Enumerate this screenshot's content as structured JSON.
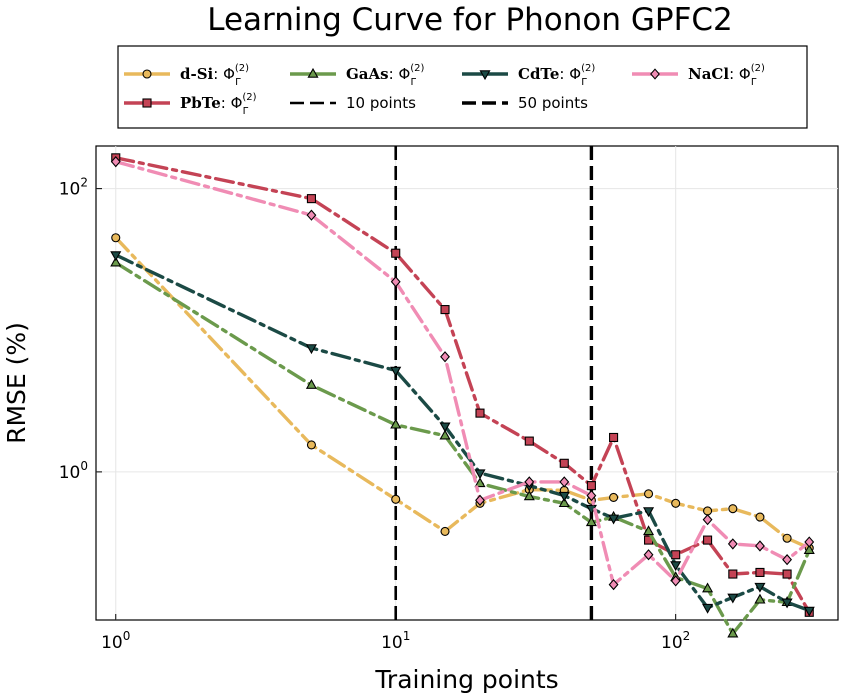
{
  "chart_data": {
    "type": "line",
    "title": "Learning Curve for Phonon GPFC2",
    "xlabel": "Training points",
    "ylabel": "RMSE (%)",
    "xscale": "log",
    "yscale": "log",
    "xlim": [
      0.85,
      380
    ],
    "ylim": [
      0.09,
      200
    ],
    "xticks": [
      {
        "value": 1,
        "base": "10",
        "exp": "0"
      },
      {
        "value": 10,
        "base": "10",
        "exp": "1"
      },
      {
        "value": 100,
        "base": "10",
        "exp": "2"
      }
    ],
    "yticks": [
      {
        "value": 1,
        "base": "10",
        "exp": "0"
      },
      {
        "value": 100,
        "base": "10",
        "exp": "2"
      }
    ],
    "grid": true,
    "legend_position": "top",
    "series": [
      {
        "name": "d-Si",
        "name_prefix": "d-Si",
        "name_suffix": "Φ",
        "name_sup": "(2)",
        "name_sub": "Γ",
        "color": "#e8b95c",
        "marker": "circle",
        "x": [
          1,
          5,
          10,
          15,
          20,
          30,
          40,
          50,
          60,
          80,
          100,
          130,
          160,
          200,
          250,
          300
        ],
        "y": [
          45,
          1.55,
          0.64,
          0.38,
          0.6,
          0.75,
          0.74,
          0.63,
          0.66,
          0.7,
          0.6,
          0.53,
          0.55,
          0.48,
          0.34,
          0.29
        ]
      },
      {
        "name": "PbTe",
        "name_prefix": "PbTe",
        "name_suffix": "Φ",
        "name_sup": "(2)",
        "name_sub": "Γ",
        "color": "#c44355",
        "marker": "square",
        "x": [
          1,
          5,
          10,
          15,
          20,
          30,
          40,
          50,
          60,
          80,
          100,
          130,
          160,
          200,
          250,
          300
        ],
        "y": [
          165,
          85,
          35,
          14,
          2.6,
          1.65,
          1.15,
          0.8,
          1.75,
          0.33,
          0.26,
          0.33,
          0.19,
          0.195,
          0.19,
          0.102
        ]
      },
      {
        "name": "GaAs",
        "name_prefix": "GaAs",
        "name_suffix": "Φ",
        "name_sup": "(2)",
        "name_sub": "Γ",
        "color": "#6b9a4c",
        "marker": "triangle-up",
        "x": [
          1,
          5,
          10,
          15,
          20,
          30,
          40,
          50,
          60,
          80,
          100,
          130,
          160,
          200,
          250,
          300
        ],
        "y": [
          30,
          4.1,
          2.15,
          1.8,
          0.83,
          0.67,
          0.6,
          0.44,
          0.48,
          0.38,
          0.18,
          0.15,
          0.072,
          0.125,
          0.12,
          0.28
        ]
      },
      {
        "name": "CdTe",
        "name_prefix": "CdTe",
        "name_suffix": "Φ",
        "name_sup": "(2)",
        "name_sub": "Γ",
        "color": "#1b4a45",
        "marker": "triangle-down",
        "x": [
          1,
          5,
          10,
          15,
          20,
          30,
          40,
          50,
          60,
          80,
          100,
          130,
          160,
          200,
          250,
          300
        ],
        "y": [
          34,
          7.5,
          5.2,
          2.1,
          0.98,
          0.8,
          0.68,
          0.55,
          0.47,
          0.53,
          0.22,
          0.11,
          0.13,
          0.155,
          0.12,
          0.105
        ]
      },
      {
        "name": "NaCl",
        "name_prefix": "NaCl",
        "name_suffix": "Φ",
        "name_sup": "(2)",
        "name_sub": "Γ",
        "color": "#f08cb4",
        "marker": "diamond",
        "x": [
          1,
          5,
          10,
          15,
          20,
          30,
          40,
          50,
          60,
          80,
          100,
          130,
          160,
          200,
          250,
          300
        ],
        "y": [
          155,
          65,
          22,
          6.5,
          0.63,
          0.85,
          0.85,
          0.68,
          0.16,
          0.26,
          0.17,
          0.46,
          0.31,
          0.3,
          0.24,
          0.32
        ]
      }
    ],
    "vlines": [
      {
        "name": "10 points",
        "x": 10,
        "style": "dashed",
        "color": "#000000"
      },
      {
        "name": "50 points",
        "x": 50,
        "style": "dashed",
        "color": "#000000"
      }
    ]
  }
}
